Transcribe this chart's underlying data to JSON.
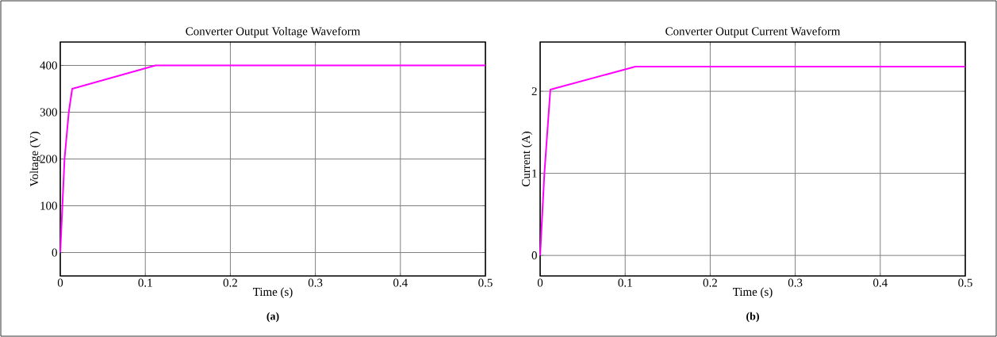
{
  "chart_data": [
    {
      "type": "line",
      "title": "Converter Output Voltage Waveform",
      "xlabel": "Time (s)",
      "ylabel": "Voltage (V)",
      "annotations": [
        "(a)"
      ],
      "x": [
        0,
        0.005,
        0.01,
        0.014,
        0.112,
        0.5
      ],
      "series": [
        {
          "color": "#ff00ff",
          "values": [
            0,
            200,
            300,
            350,
            400,
            400
          ]
        }
      ],
      "xlim": [
        0,
        0.5
      ],
      "ylim": [
        -50,
        450
      ],
      "xticks": [
        0,
        0.1,
        0.2,
        0.3,
        0.4,
        0.5
      ],
      "yticks": [
        0,
        100,
        200,
        300,
        400
      ],
      "grid": true,
      "line_style": "solid",
      "marker": "none"
    },
    {
      "type": "line",
      "title": "Converter Output Current Waveform",
      "xlabel": "Time (s)",
      "ylabel": "Current (A)",
      "annotations": [
        "(b)"
      ],
      "x": [
        0,
        0.005,
        0.012,
        0.112,
        0.5
      ],
      "series": [
        {
          "color": "#ff00ff",
          "values": [
            0,
            1,
            2.02,
            2.3,
            2.3
          ]
        }
      ],
      "xlim": [
        0,
        0.5
      ],
      "ylim": [
        -0.25,
        2.6
      ],
      "xticks": [
        0,
        0.1,
        0.2,
        0.3,
        0.4,
        0.5
      ],
      "yticks": [
        0,
        1,
        2
      ],
      "grid": true,
      "line_style": "solid",
      "marker": "none"
    }
  ]
}
